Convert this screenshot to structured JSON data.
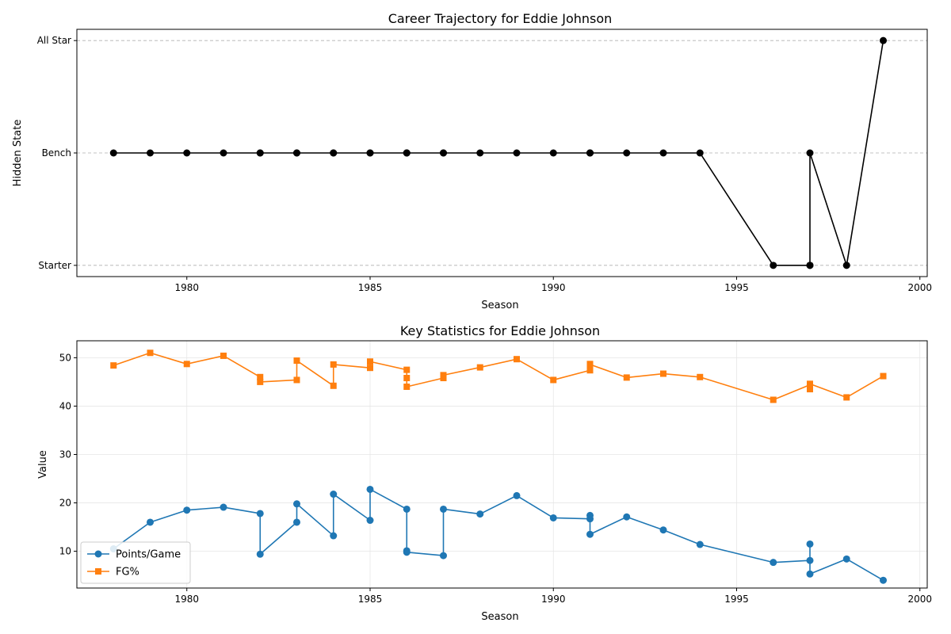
{
  "chart_data": [
    {
      "type": "line",
      "title": "Career Trajectory for Eddie Johnson",
      "xlabel": "Season",
      "ylabel": "Hidden State",
      "xlim": [
        1977,
        2000.2
      ],
      "xticks": [
        1980,
        1985,
        1990,
        1995,
        2000
      ],
      "ylim": [
        -0.1,
        2.1
      ],
      "yticks": [
        0,
        1,
        2
      ],
      "ytick_labels": [
        "Starter",
        "Bench",
        "All Star"
      ],
      "grid": "y-dashed",
      "color": "#000000",
      "series": [
        {
          "x": [
            1978,
            1979,
            1980,
            1981,
            1982,
            1982,
            1983,
            1983,
            1984,
            1984,
            1985,
            1985,
            1986,
            1986,
            1986,
            1987,
            1987,
            1988,
            1989,
            1990,
            1991,
            1991,
            1991,
            1992,
            1993,
            1994,
            1996,
            1997,
            1997,
            1997,
            1998,
            1999
          ],
          "y": [
            1,
            1,
            1,
            1,
            1,
            1,
            1,
            1,
            1,
            1,
            1,
            1,
            1,
            1,
            1,
            1,
            1,
            1,
            1,
            1,
            1,
            1,
            1,
            1,
            1,
            1,
            0,
            0,
            0,
            1,
            0,
            2
          ]
        }
      ]
    },
    {
      "type": "line",
      "title": "Key Statistics for Eddie Johnson",
      "xlabel": "Season",
      "ylabel": "Value",
      "xlim": [
        1977,
        2000.2
      ],
      "xticks": [
        1980,
        1985,
        1990,
        1995,
        2000
      ],
      "ylim": [
        2.4,
        53.5
      ],
      "yticks": [
        10,
        20,
        30,
        40,
        50
      ],
      "grid": "both",
      "legend": "lower-left",
      "series": [
        {
          "name": "Points/Game",
          "color": "#1f77b4",
          "marker": "circle",
          "x": [
            1978,
            1979,
            1980,
            1981,
            1982,
            1982,
            1983,
            1983,
            1984,
            1984,
            1985,
            1985,
            1986,
            1986,
            1986,
            1987,
            1987,
            1988,
            1989,
            1990,
            1991,
            1991,
            1991,
            1992,
            1993,
            1994,
            1996,
            1997,
            1997,
            1997,
            1998,
            1999
          ],
          "y": [
            10.5,
            16.0,
            18.5,
            19.1,
            17.8,
            9.4,
            16.0,
            19.8,
            13.2,
            21.8,
            16.4,
            22.8,
            18.7,
            10.1,
            9.8,
            9.1,
            18.7,
            17.7,
            21.5,
            16.9,
            16.7,
            17.4,
            13.5,
            17.1,
            14.4,
            11.4,
            7.7,
            8.1,
            11.5,
            5.3,
            8.4,
            4.0
          ]
        },
        {
          "name": "FG%",
          "color": "#ff7f0e",
          "marker": "square",
          "x": [
            1978,
            1979,
            1980,
            1981,
            1982,
            1982,
            1983,
            1983,
            1984,
            1984,
            1985,
            1985,
            1986,
            1986,
            1986,
            1987,
            1987,
            1988,
            1989,
            1990,
            1991,
            1991,
            1991,
            1992,
            1993,
            1994,
            1996,
            1997,
            1997,
            1997,
            1998,
            1999
          ],
          "y": [
            48.4,
            51.0,
            48.7,
            50.4,
            46.0,
            45.0,
            45.4,
            49.4,
            44.2,
            48.6,
            47.9,
            49.2,
            47.5,
            45.8,
            44.0,
            45.8,
            46.4,
            48.0,
            49.7,
            45.4,
            47.4,
            48.7,
            48.6,
            45.9,
            46.7,
            46.0,
            41.3,
            44.4,
            43.5,
            44.6,
            41.8,
            46.2
          ]
        }
      ]
    }
  ]
}
